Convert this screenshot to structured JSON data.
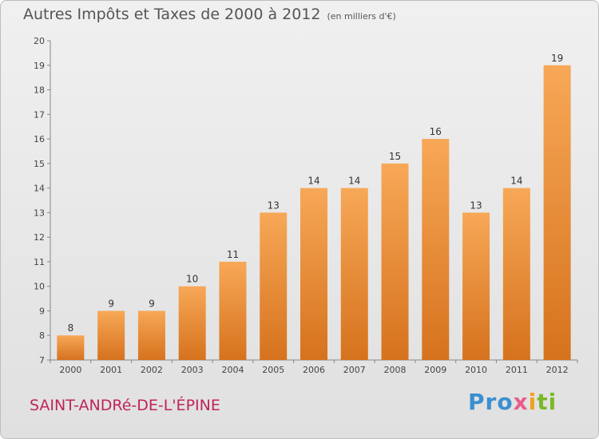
{
  "title": {
    "main": "Autres Impôts et Taxes de 2000 à 2012",
    "unit": "(en milliers d'€)"
  },
  "commune": "SAINT-ANDRé-DE-L'ÉPINE",
  "logo": "Proxiti",
  "colors": {
    "bar_top": "#f7a857",
    "bar_bottom": "#d6721d",
    "commune_text": "#c0245c"
  },
  "chart_data": {
    "type": "bar",
    "categories": [
      "2000",
      "2001",
      "2002",
      "2003",
      "2004",
      "2005",
      "2006",
      "2007",
      "2008",
      "2009",
      "2010",
      "2011",
      "2012"
    ],
    "values": [
      8,
      9,
      9,
      10,
      11,
      13,
      14,
      14,
      15,
      16,
      13,
      14,
      19
    ],
    "ylim": [
      7,
      20
    ],
    "yticks": [
      7,
      8,
      9,
      10,
      11,
      12,
      13,
      14,
      15,
      16,
      17,
      18,
      19,
      20
    ],
    "grid": false,
    "legend": "none"
  }
}
